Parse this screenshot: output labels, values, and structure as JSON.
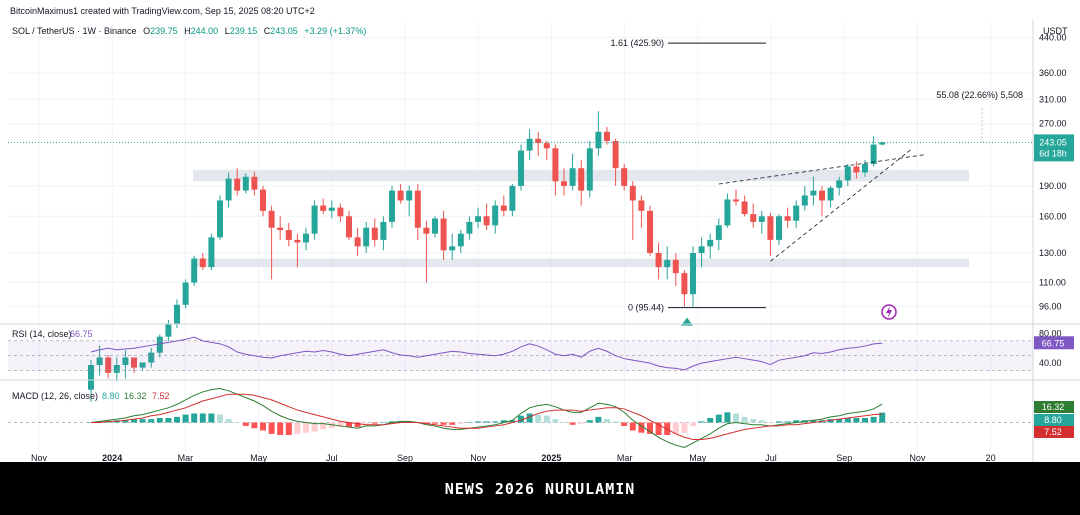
{
  "header": {
    "credit": "BitcoinMaximus1 created with TradingView.com, Sep 15, 2025 08:20 UTC+2",
    "symbol": "SOL / TetherUS · 1W · Binance",
    "ohlc": [
      {
        "label": "O",
        "value": "239.75"
      },
      {
        "label": "H",
        "value": "244.00"
      },
      {
        "label": "L",
        "value": "239.15"
      },
      {
        "label": "C",
        "value": "243.05"
      }
    ],
    "change": "+3.29 (+1.37%)",
    "currency": "USDT"
  },
  "colors": {
    "up": "#26a69a",
    "down": "#ef5350",
    "rsi": "#7e57c2",
    "macd": "#2e7d32",
    "signal": "#d32f2f"
  },
  "chart_data": {
    "type": "candlestick",
    "price_axis": {
      "scale": "log",
      "ticks": [
        "440.00",
        "360.00",
        "310.00",
        "270.00",
        "190.00",
        "160.00",
        "130.00",
        "110.00",
        "96.00"
      ],
      "last_price_label": "243.05",
      "countdown_label": "6d 18h"
    },
    "time_axis": {
      "ticks": [
        "Nov",
        "2024",
        "Mar",
        "May",
        "Jul",
        "Sep",
        "Nov",
        "2025",
        "Mar",
        "May",
        "Jul",
        "Sep",
        "Nov",
        "20"
      ]
    },
    "candles": [
      [
        60,
        71,
        56,
        69
      ],
      [
        69,
        77,
        65,
        72
      ],
      [
        72,
        73,
        64,
        66
      ],
      [
        66,
        72,
        63,
        69
      ],
      [
        69,
        75,
        64,
        72
      ],
      [
        72,
        71,
        66,
        68
      ],
      [
        68,
        70,
        67,
        70
      ],
      [
        70,
        76,
        68,
        74
      ],
      [
        74,
        82,
        72,
        81
      ],
      [
        81,
        89,
        79,
        87
      ],
      [
        87,
        100,
        85,
        97
      ],
      [
        97,
        112,
        95,
        110
      ],
      [
        110,
        128,
        108,
        126
      ],
      [
        126,
        130,
        118,
        120
      ],
      [
        120,
        145,
        118,
        142
      ],
      [
        142,
        180,
        140,
        175
      ],
      [
        175,
        205,
        168,
        198
      ],
      [
        198,
        210,
        180,
        185
      ],
      [
        185,
        204,
        182,
        200
      ],
      [
        200,
        206,
        180,
        186
      ],
      [
        186,
        190,
        160,
        165
      ],
      [
        165,
        170,
        112,
        150
      ],
      [
        150,
        160,
        140,
        148
      ],
      [
        148,
        154,
        135,
        140
      ],
      [
        140,
        145,
        120,
        138
      ],
      [
        138,
        150,
        132,
        145
      ],
      [
        145,
        175,
        140,
        170
      ],
      [
        170,
        177,
        162,
        165
      ],
      [
        165,
        175,
        158,
        168
      ],
      [
        168,
        172,
        155,
        160
      ],
      [
        160,
        165,
        140,
        142
      ],
      [
        142,
        150,
        128,
        135
      ],
      [
        135,
        155,
        130,
        150
      ],
      [
        150,
        158,
        135,
        140
      ],
      [
        140,
        160,
        132,
        155
      ],
      [
        155,
        190,
        150,
        185
      ],
      [
        185,
        192,
        172,
        175
      ],
      [
        175,
        190,
        160,
        185
      ],
      [
        185,
        192,
        140,
        150
      ],
      [
        150,
        156,
        110,
        145
      ],
      [
        145,
        160,
        142,
        158
      ],
      [
        158,
        165,
        125,
        132
      ],
      [
        132,
        145,
        125,
        135
      ],
      [
        135,
        148,
        130,
        145
      ],
      [
        145,
        160,
        140,
        155
      ],
      [
        155,
        168,
        150,
        160
      ],
      [
        160,
        172,
        148,
        152
      ],
      [
        152,
        175,
        145,
        170
      ],
      [
        170,
        180,
        160,
        165
      ],
      [
        165,
        192,
        160,
        190
      ],
      [
        190,
        240,
        185,
        232
      ],
      [
        232,
        262,
        220,
        248
      ],
      [
        248,
        258,
        225,
        242
      ],
      [
        242,
        245,
        220,
        235
      ],
      [
        235,
        240,
        180,
        195
      ],
      [
        195,
        210,
        180,
        190
      ],
      [
        190,
        228,
        185,
        210
      ],
      [
        210,
        220,
        170,
        185
      ],
      [
        185,
        245,
        178,
        235
      ],
      [
        235,
        290,
        225,
        258
      ],
      [
        258,
        265,
        240,
        245
      ],
      [
        245,
        248,
        190,
        210
      ],
      [
        210,
        215,
        185,
        190
      ],
      [
        190,
        195,
        140,
        175
      ],
      [
        175,
        180,
        150,
        165
      ],
      [
        165,
        170,
        128,
        130
      ],
      [
        130,
        138,
        112,
        120
      ],
      [
        120,
        135,
        112,
        125
      ],
      [
        125,
        130,
        108,
        116
      ],
      [
        116,
        118,
        96,
        103
      ],
      [
        103,
        135,
        96,
        130
      ],
      [
        130,
        142,
        120,
        135
      ],
      [
        135,
        145,
        126,
        140
      ],
      [
        140,
        158,
        132,
        152
      ],
      [
        152,
        182,
        150,
        176
      ],
      [
        176,
        186,
        170,
        174
      ],
      [
        174,
        180,
        160,
        162
      ],
      [
        162,
        172,
        150,
        155
      ],
      [
        155,
        165,
        145,
        160
      ],
      [
        160,
        163,
        128,
        140
      ],
      [
        140,
        162,
        136,
        160
      ],
      [
        160,
        168,
        150,
        156
      ],
      [
        156,
        175,
        150,
        170
      ],
      [
        170,
        190,
        165,
        180
      ],
      [
        180,
        200,
        170,
        185
      ],
      [
        185,
        190,
        160,
        175
      ],
      [
        175,
        190,
        168,
        188
      ],
      [
        188,
        200,
        180,
        196
      ],
      [
        196,
        215,
        190,
        212
      ],
      [
        212,
        218,
        198,
        205
      ],
      [
        205,
        220,
        200,
        215
      ],
      [
        215,
        252,
        212,
        240
      ],
      [
        240,
        244,
        239,
        243
      ]
    ],
    "horizontal_zones": [
      {
        "low": 195,
        "high": 208
      },
      {
        "low": 120,
        "high": 126
      }
    ],
    "fib_levels": [
      {
        "label": "1.61 (425.90)",
        "price": 425.9
      },
      {
        "label": "0 (95.44)",
        "price": 95.44
      }
    ],
    "measure_label": "55.08 (22.66%) 5,508",
    "rsi": {
      "title": "RSI (14, close)",
      "value_label": "66.75",
      "ticks": [
        "80.00",
        "40.00"
      ],
      "range": [
        20,
        90
      ],
      "band": [
        30,
        70
      ],
      "values": [
        55,
        58,
        60,
        58,
        59,
        60,
        62,
        64,
        66,
        68,
        70,
        72,
        75,
        70,
        68,
        66,
        62,
        55,
        52,
        50,
        48,
        47,
        50,
        52,
        54,
        56,
        55,
        57,
        55,
        52,
        50,
        52,
        54,
        56,
        58,
        54,
        51,
        50,
        48,
        50,
        52,
        54,
        56,
        55,
        53,
        52,
        51,
        50,
        52,
        56,
        62,
        66,
        63,
        58,
        52,
        50,
        52,
        48,
        56,
        60,
        56,
        50,
        46,
        44,
        42,
        40,
        36,
        34,
        33,
        31,
        36,
        40,
        42,
        44,
        46,
        48,
        46,
        44,
        42,
        38,
        44,
        46,
        48,
        50,
        54,
        53,
        55,
        58,
        60,
        61,
        63,
        66,
        66.75
      ]
    },
    "macd": {
      "title": "MACD (12, 26, close)",
      "labels": [
        "8.80",
        "16.32",
        "7.52"
      ],
      "range": [
        -26,
        34
      ],
      "macd": [
        0,
        1,
        2,
        3,
        4,
        6,
        7,
        9,
        11,
        13,
        16,
        20,
        24,
        27,
        29,
        30,
        28,
        25,
        22,
        19,
        15,
        10,
        6,
        3,
        1,
        0,
        -1,
        -1,
        -2,
        -3,
        -4,
        -5,
        -3,
        -3,
        -2,
        0,
        1,
        1,
        0,
        -2,
        -3,
        -5,
        -6,
        -6,
        -5,
        -4,
        -3,
        -2,
        0,
        2,
        8,
        13,
        15,
        16,
        14,
        11,
        9,
        9,
        13,
        17,
        16,
        14,
        9,
        2,
        -3,
        -8,
        -13,
        -17,
        -20,
        -22,
        -18,
        -14,
        -10,
        -5,
        -1,
        0,
        -1,
        -2,
        -2,
        -3,
        -2,
        -1,
        0,
        1,
        2,
        3,
        5,
        6,
        8,
        9,
        10,
        12,
        16.32
      ],
      "signal": [
        0,
        0,
        1,
        1,
        2,
        3,
        4,
        6,
        7,
        9,
        11,
        13,
        16,
        19,
        21,
        23,
        25,
        25,
        25,
        24,
        22,
        20,
        17,
        14,
        11,
        9,
        7,
        5,
        3,
        1,
        0,
        -1,
        -2,
        -2,
        -2,
        -1,
        0,
        0,
        0,
        -1,
        -2,
        -3,
        -4,
        -5,
        -5,
        -5,
        -4,
        -3,
        -2,
        0,
        2,
        5,
        8,
        10,
        11,
        11,
        11,
        10,
        11,
        12,
        13,
        13,
        12,
        9,
        6,
        2,
        -2,
        -6,
        -10,
        -13,
        -15,
        -15,
        -14,
        -12,
        -10,
        -8,
        -6,
        -5,
        -4,
        -3,
        -3,
        -2,
        -2,
        -1,
        0,
        1,
        2,
        3,
        4,
        5,
        6,
        7,
        7.52
      ]
    }
  },
  "watermark": "NEWS 2026 NURULAMIN"
}
